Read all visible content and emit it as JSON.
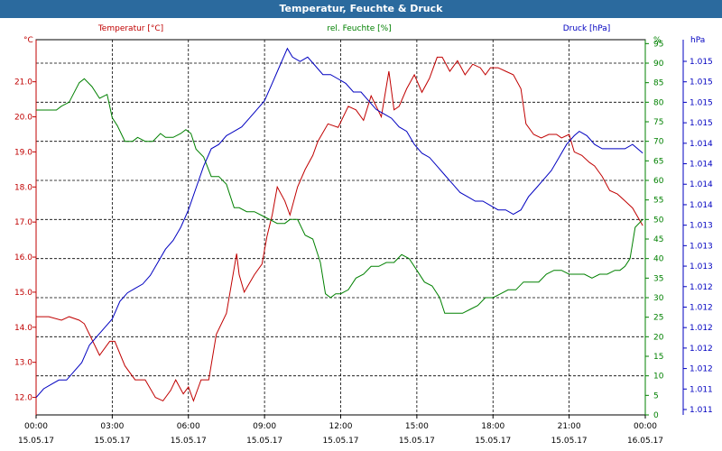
{
  "chart_data": {
    "type": "line",
    "title": "Temperatur, Feuchte & Druck",
    "x_tick_labels": [
      [
        "00:00",
        "15.05.17"
      ],
      [
        "03:00",
        "15.05.17"
      ],
      [
        "06:00",
        "15.05.17"
      ],
      [
        "09:00",
        "15.05.17"
      ],
      [
        "12:00",
        "15.05.17"
      ],
      [
        "15:00",
        "15.05.17"
      ],
      [
        "18:00",
        "15.05.17"
      ],
      [
        "21:00",
        "15.05.17"
      ],
      [
        "00:00",
        "16.05.17"
      ]
    ],
    "xlim": [
      0,
      24
    ],
    "grid": true,
    "axes": {
      "temperature": {
        "label": "Temperatur [°C]",
        "unit": "°C",
        "color": "#c00000",
        "ylim": [
          11.5,
          22.2
        ],
        "ticks": [
          "12.0",
          "13.0",
          "14.0",
          "15.0",
          "16.0",
          "17.0",
          "18.0",
          "19.0",
          "20.0",
          "21.0"
        ]
      },
      "humidity": {
        "label": "rel. Feuchte [%]",
        "unit": "%",
        "color": "#008000",
        "ylim": [
          0,
          96
        ],
        "ticks": [
          "0",
          "5",
          "10",
          "15",
          "20",
          "25",
          "30",
          "35",
          "40",
          "45",
          "50",
          "55",
          "60",
          "65",
          "70",
          "75",
          "80",
          "85",
          "90",
          "95"
        ]
      },
      "pressure": {
        "label": "Druck [hPa]",
        "unit": "hPa",
        "color": "#0000c0",
        "ylim": [
          1011,
          1015.3
        ],
        "ticks": [
          "1.011",
          "1.011",
          "1.012",
          "1.012",
          "1.012",
          "1.012",
          "1.012",
          "1.013",
          "1.013",
          "1.013",
          "1.014",
          "1.014",
          "1.014",
          "1.014",
          "1.015",
          "1.015",
          "1.015",
          "1.015"
        ]
      }
    },
    "series": [
      {
        "name": "Temperatur [°C]",
        "axis": "temperature",
        "color": "#c00000",
        "x": [
          0,
          0.5,
          1,
          1.3,
          1.7,
          1.9,
          2.1,
          2.5,
          2.9,
          3.1,
          3.5,
          3.9,
          4.3,
          4.7,
          5,
          5.3,
          5.5,
          5.8,
          6,
          6.2,
          6.5,
          6.8,
          7.1,
          7.5,
          7.9,
          8.0,
          8.2,
          8.6,
          8.9,
          9.1,
          9.3,
          9.5,
          9.8,
          10.0,
          10.3,
          10.6,
          10.9,
          11.1,
          11.5,
          11.9,
          12.3,
          12.6,
          12.9,
          13.2,
          13.6,
          13.9,
          14.1,
          14.3,
          14.6,
          14.9,
          15.2,
          15.5,
          15.8,
          16.0,
          16.3,
          16.6,
          16.9,
          17.2,
          17.5,
          17.7,
          17.9,
          18.2,
          18.5,
          18.8,
          19.1,
          19.3,
          19.6,
          19.9,
          20.2,
          20.5,
          20.7,
          21.0,
          21.2,
          21.5,
          21.8,
          22.0,
          22.3,
          22.6,
          22.9,
          23.2,
          23.5,
          23.9
        ],
        "values": [
          14.3,
          14.3,
          14.2,
          14.3,
          14.2,
          14.1,
          13.8,
          13.2,
          13.6,
          13.6,
          12.9,
          12.5,
          12.5,
          12.0,
          11.9,
          12.2,
          12.5,
          12.1,
          12.3,
          11.9,
          12.5,
          12.5,
          13.8,
          14.4,
          16.1,
          15.5,
          15.0,
          15.5,
          15.8,
          16.6,
          17.2,
          18.0,
          17.6,
          17.2,
          18.0,
          18.5,
          18.9,
          19.3,
          19.8,
          19.7,
          20.3,
          20.2,
          19.9,
          20.6,
          20.0,
          21.3,
          20.2,
          20.3,
          20.8,
          21.2,
          20.7,
          21.1,
          21.7,
          21.7,
          21.3,
          21.6,
          21.2,
          21.5,
          21.4,
          21.2,
          21.4,
          21.4,
          21.3,
          21.2,
          20.8,
          19.8,
          19.5,
          19.4,
          19.5,
          19.5,
          19.4,
          19.5,
          19.0,
          18.9,
          18.7,
          18.6,
          18.3,
          17.9,
          17.8,
          17.6,
          17.4,
          16.9
        ]
      },
      {
        "name": "rel. Feuchte [%]",
        "axis": "humidity",
        "color": "#008000",
        "x": [
          0,
          0.5,
          0.8,
          1.0,
          1.3,
          1.7,
          1.9,
          2.2,
          2.5,
          2.8,
          3.0,
          3.2,
          3.5,
          3.8,
          4.0,
          4.3,
          4.6,
          4.9,
          5.1,
          5.4,
          5.7,
          5.9,
          6.1,
          6.3,
          6.6,
          6.9,
          7.2,
          7.5,
          7.8,
          8.0,
          8.3,
          8.6,
          8.9,
          9.2,
          9.5,
          9.8,
          10.0,
          10.3,
          10.6,
          10.9,
          11.2,
          11.4,
          11.6,
          11.8,
          12.0,
          12.3,
          12.6,
          12.9,
          13.2,
          13.5,
          13.8,
          14.1,
          14.4,
          14.7,
          15.0,
          15.3,
          15.6,
          15.9,
          16.1,
          16.4,
          16.8,
          17.1,
          17.4,
          17.7,
          18.0,
          18.3,
          18.6,
          18.9,
          19.2,
          19.5,
          19.8,
          20.1,
          20.4,
          20.7,
          21.0,
          21.3,
          21.6,
          21.9,
          22.2,
          22.5,
          22.8,
          23.0,
          23.2,
          23.4,
          23.6,
          23.9
        ],
        "values": [
          78,
          78,
          78,
          79,
          80,
          85,
          86,
          84,
          81,
          82,
          76,
          74,
          70,
          70,
          71,
          70,
          70,
          72,
          71,
          71,
          72,
          73,
          72,
          68,
          66,
          61,
          61,
          59,
          53,
          53,
          52,
          52,
          51,
          50,
          49,
          49,
          50,
          50,
          46,
          45,
          39,
          31,
          30,
          31,
          31,
          32,
          35,
          36,
          38,
          38,
          39,
          39,
          41,
          40,
          37,
          34,
          33,
          30,
          26,
          26,
          26,
          27,
          28,
          30,
          30,
          31,
          32,
          32,
          34,
          34,
          34,
          36,
          37,
          37,
          36,
          36,
          36,
          35,
          36,
          36,
          37,
          37,
          38,
          40,
          48,
          50
        ]
      },
      {
        "name": "Druck [hPa]",
        "axis": "pressure",
        "color": "#0000c0",
        "x": [
          0,
          0.3,
          0.6,
          0.9,
          1.2,
          1.5,
          1.8,
          2.1,
          2.4,
          2.7,
          3.0,
          3.3,
          3.6,
          3.9,
          4.2,
          4.5,
          4.8,
          5.1,
          5.4,
          5.7,
          6.0,
          6.3,
          6.6,
          6.9,
          7.2,
          7.5,
          7.8,
          8.1,
          8.4,
          8.7,
          9.0,
          9.3,
          9.6,
          9.9,
          10.1,
          10.4,
          10.7,
          11.0,
          11.3,
          11.6,
          11.9,
          12.2,
          12.5,
          12.8,
          13.1,
          13.4,
          13.7,
          14.0,
          14.3,
          14.6,
          14.9,
          15.2,
          15.5,
          15.8,
          16.1,
          16.4,
          16.7,
          17.0,
          17.3,
          17.6,
          17.9,
          18.2,
          18.5,
          18.8,
          19.1,
          19.4,
          19.7,
          20.0,
          20.3,
          20.6,
          20.9,
          21.2,
          21.4,
          21.7,
          22.0,
          22.3,
          22.6,
          22.9,
          23.2,
          23.5,
          23.9
        ],
        "values": [
          1011.2,
          1011.3,
          1011.35,
          1011.4,
          1011.4,
          1011.5,
          1011.6,
          1011.8,
          1011.9,
          1012.0,
          1012.1,
          1012.3,
          1012.4,
          1012.45,
          1012.5,
          1012.6,
          1012.75,
          1012.9,
          1013.0,
          1013.15,
          1013.35,
          1013.6,
          1013.85,
          1014.05,
          1014.1,
          1014.2,
          1014.25,
          1014.3,
          1014.4,
          1014.5,
          1014.6,
          1014.8,
          1015.0,
          1015.2,
          1015.1,
          1015.05,
          1015.1,
          1015.0,
          1014.9,
          1014.9,
          1014.85,
          1014.8,
          1014.7,
          1014.7,
          1014.6,
          1014.5,
          1014.45,
          1014.4,
          1014.3,
          1014.25,
          1014.1,
          1014.0,
          1013.95,
          1013.85,
          1013.75,
          1013.65,
          1013.55,
          1013.5,
          1013.45,
          1013.45,
          1013.4,
          1013.35,
          1013.35,
          1013.3,
          1013.35,
          1013.5,
          1013.6,
          1013.7,
          1013.8,
          1013.95,
          1014.1,
          1014.2,
          1014.25,
          1014.2,
          1014.1,
          1014.05,
          1014.05,
          1014.05,
          1014.05,
          1014.1,
          1014.0
        ]
      }
    ]
  }
}
